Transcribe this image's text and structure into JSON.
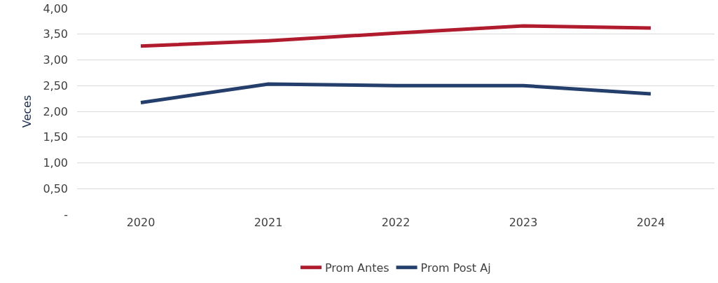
{
  "chart_data": {
    "type": "line",
    "ylabel": "Veces",
    "categories": [
      "2020",
      "2021",
      "2022",
      "2023",
      "2024"
    ],
    "series": [
      {
        "name": "Prom Antes",
        "color": "#b01c2e",
        "values": [
          3.27,
          3.37,
          3.52,
          3.66,
          3.62
        ]
      },
      {
        "name": "Prom Post Aj",
        "color": "#243f6b",
        "values": [
          2.17,
          2.53,
          2.5,
          2.5,
          2.34
        ]
      }
    ],
    "ylim": [
      0,
      4
    ],
    "yticks": [
      {
        "value": 0,
        "label": "-"
      },
      {
        "value": 0.5,
        "label": "0,50"
      },
      {
        "value": 1,
        "label": "1,00"
      },
      {
        "value": 1.5,
        "label": "1,50"
      },
      {
        "value": 2,
        "label": "2,00"
      },
      {
        "value": 2.5,
        "label": "2,50"
      },
      {
        "value": 3,
        "label": "3,00"
      },
      {
        "value": 3.5,
        "label": "3,50"
      },
      {
        "value": 4,
        "label": "4,00"
      }
    ],
    "grid": "y",
    "legend": "bottom",
    "marker": "none",
    "line_style": "solid"
  }
}
